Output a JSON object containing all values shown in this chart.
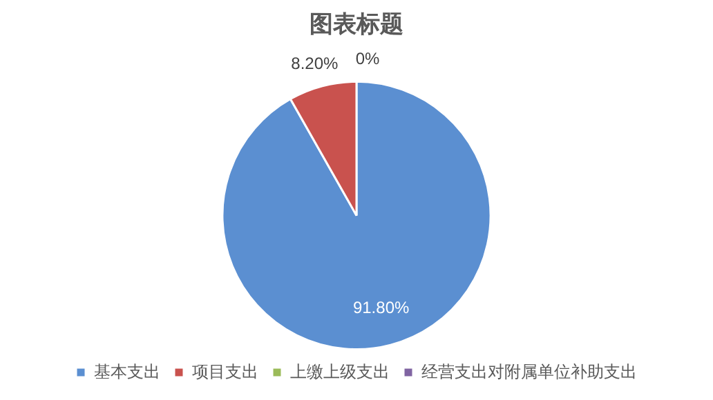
{
  "chart_data": {
    "type": "pie",
    "title": "图表标题",
    "categories": [
      "基本支出",
      "项目支出",
      "上缴上级支出",
      "经营支出对附属单位补助支出"
    ],
    "values": [
      91.8,
      8.2,
      0,
      0
    ],
    "colors": [
      "#5b8fd1",
      "#c9524e",
      "#9bbb59",
      "#8064a2"
    ],
    "value_labels": [
      "91.80%",
      "8.20%",
      "0%",
      null
    ],
    "legend": "bottom"
  }
}
